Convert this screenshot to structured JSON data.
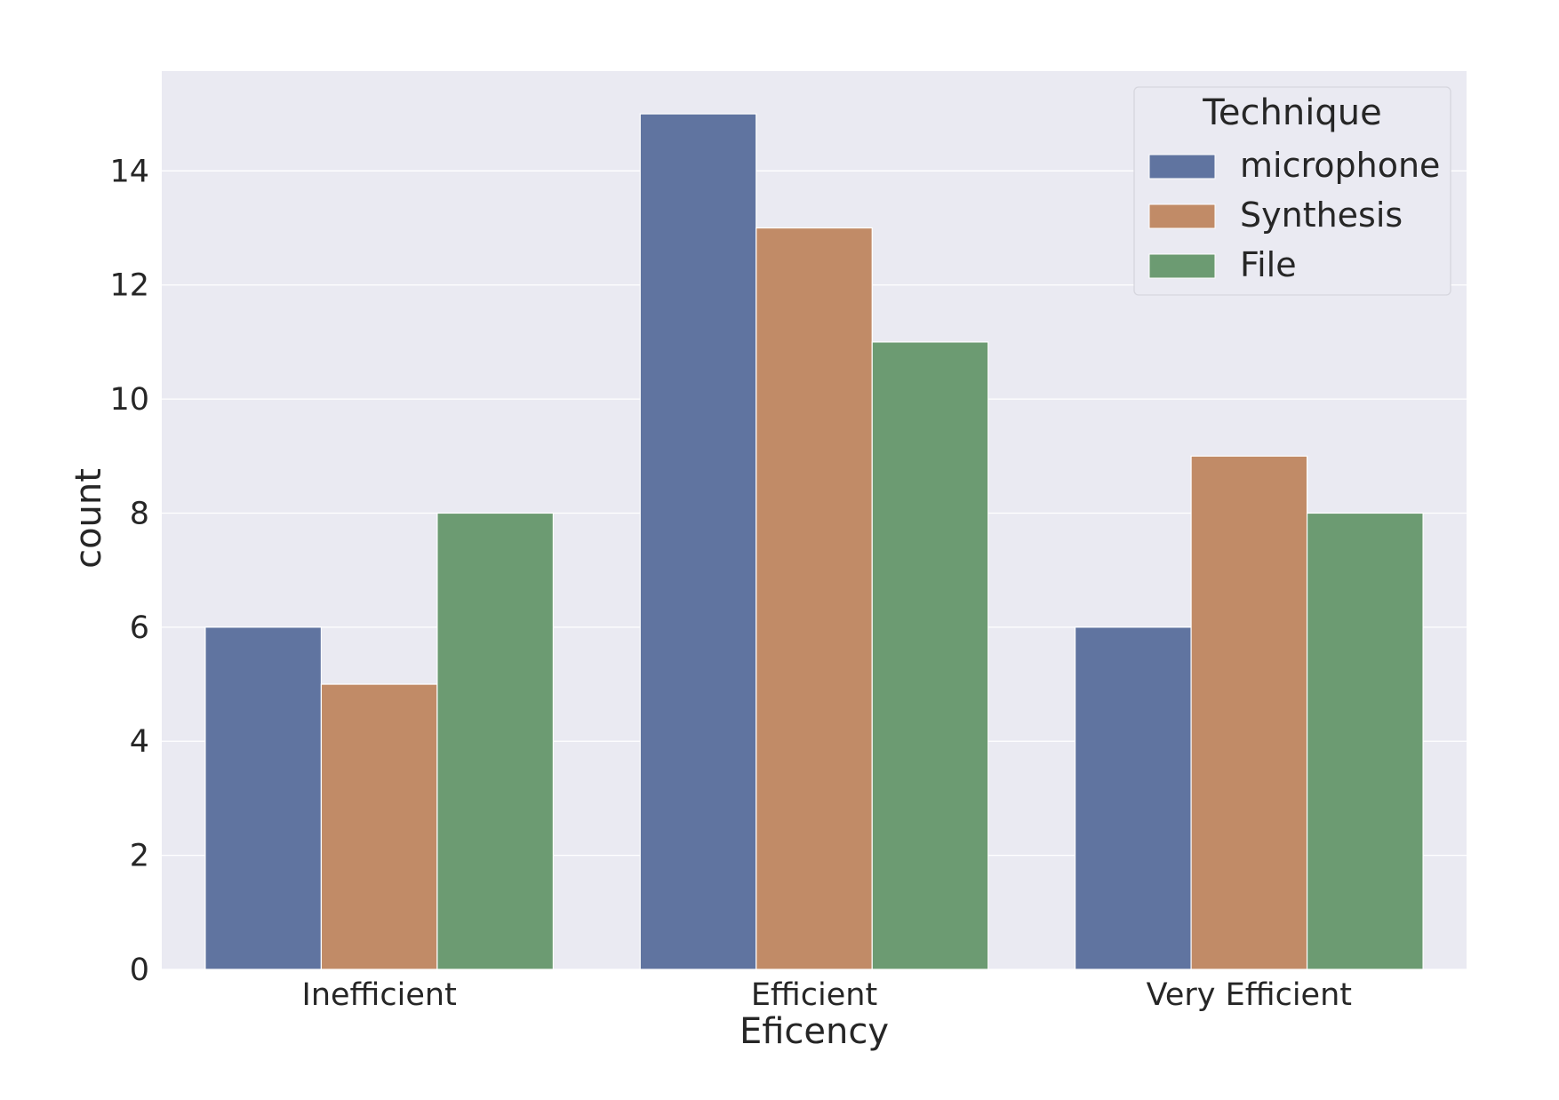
{
  "chart_data": {
    "type": "bar",
    "categories": [
      "Inefficient",
      "Efficient",
      "Very Efficient"
    ],
    "series": [
      {
        "name": "microphone",
        "values": [
          6,
          15,
          6
        ],
        "color": "#6074a0"
      },
      {
        "name": "Synthesis",
        "values": [
          5,
          13,
          9
        ],
        "color": "#c18b67"
      },
      {
        "name": "File",
        "values": [
          8,
          11,
          8
        ],
        "color": "#6c9b72"
      }
    ],
    "xlabel": "Eficency",
    "ylabel": "count",
    "ylim": [
      0,
      15.75
    ],
    "yticks": [
      0,
      2,
      4,
      6,
      8,
      10,
      12,
      14
    ],
    "grid": true,
    "background": "#eaeaf2",
    "legend": {
      "title": "Technique",
      "placement": "top-right"
    }
  }
}
